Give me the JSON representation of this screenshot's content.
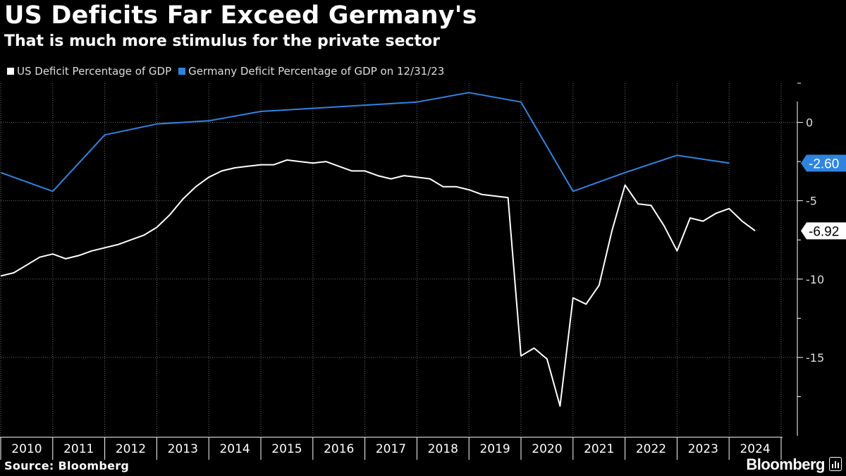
{
  "title": "US Deficits Far Exceed Germany's",
  "subtitle": "That is much more stimulus for the private sector",
  "legend": [
    {
      "label": "US Deficit Percentage of GDP",
      "color": "#ffffff"
    },
    {
      "label": "Germany Deficit Percentage of GDP on 12/31/23",
      "color": "#2f84e0"
    }
  ],
  "source": "Source: Bloomberg",
  "brand": "Bloomberg",
  "chart_data": {
    "type": "line",
    "x_range": [
      2010.0,
      2025.0
    ],
    "ylim": [
      -20,
      2.5
    ],
    "y_ticks": [
      0,
      -5,
      -10,
      -15
    ],
    "y_tick_labels": [
      "0",
      "-5",
      "-10",
      "-15"
    ],
    "x_tick_labels": [
      "2010",
      "2011",
      "2012",
      "2013",
      "2014",
      "2015",
      "2016",
      "2017",
      "2018",
      "2019",
      "2020",
      "2021",
      "2022",
      "2023",
      "2024"
    ],
    "grid": true,
    "legend_position": "top-left",
    "series": [
      {
        "name": "US Deficit Percentage of GDP",
        "color": "#ffffff",
        "last_label": "-6.92",
        "x": [
          2010.0,
          2010.25,
          2010.5,
          2010.75,
          2011.0,
          2011.25,
          2011.5,
          2011.75,
          2012.0,
          2012.25,
          2012.5,
          2012.75,
          2013.0,
          2013.25,
          2013.5,
          2013.75,
          2014.0,
          2014.25,
          2014.5,
          2014.75,
          2015.0,
          2015.25,
          2015.5,
          2015.75,
          2016.0,
          2016.25,
          2016.5,
          2016.75,
          2017.0,
          2017.25,
          2017.5,
          2017.75,
          2018.0,
          2018.25,
          2018.5,
          2018.75,
          2019.0,
          2019.25,
          2019.5,
          2019.75,
          2020.0,
          2020.25,
          2020.5,
          2020.75,
          2021.0,
          2021.25,
          2021.5,
          2021.75,
          2022.0,
          2022.25,
          2022.5,
          2022.75,
          2023.0,
          2023.25,
          2023.5,
          2023.75,
          2024.0,
          2024.25,
          2024.5
        ],
        "values": [
          -9.8,
          -9.6,
          -9.1,
          -8.6,
          -8.4,
          -8.7,
          -8.5,
          -8.2,
          -8.0,
          -7.8,
          -7.5,
          -7.2,
          -6.7,
          -5.9,
          -4.9,
          -4.1,
          -3.5,
          -3.1,
          -2.9,
          -2.8,
          -2.7,
          -2.7,
          -2.4,
          -2.5,
          -2.6,
          -2.5,
          -2.8,
          -3.1,
          -3.1,
          -3.4,
          -3.6,
          -3.4,
          -3.5,
          -3.6,
          -4.1,
          -4.1,
          -4.3,
          -4.6,
          -4.7,
          -4.8,
          -14.9,
          -14.4,
          -15.1,
          -18.1,
          -11.2,
          -11.6,
          -10.4,
          -6.9,
          -4.0,
          -5.2,
          -5.3,
          -6.6,
          -8.2,
          -6.1,
          -6.3,
          -5.8,
          -5.5,
          -6.3,
          -6.92
        ]
      },
      {
        "name": "Germany Deficit Percentage of GDP on 12/31/23",
        "color": "#2f84e0",
        "last_label": "-2.60",
        "x": [
          2010.0,
          2011.0,
          2012.0,
          2013.0,
          2014.0,
          2015.0,
          2016.0,
          2017.0,
          2018.0,
          2019.0,
          2020.0,
          2021.0,
          2022.0,
          2023.0,
          2024.0
        ],
        "values": [
          -3.2,
          -4.4,
          -0.8,
          -0.1,
          0.1,
          0.7,
          0.9,
          1.1,
          1.3,
          1.9,
          1.3,
          -4.4,
          -3.2,
          -2.1,
          -2.6
        ]
      }
    ]
  }
}
